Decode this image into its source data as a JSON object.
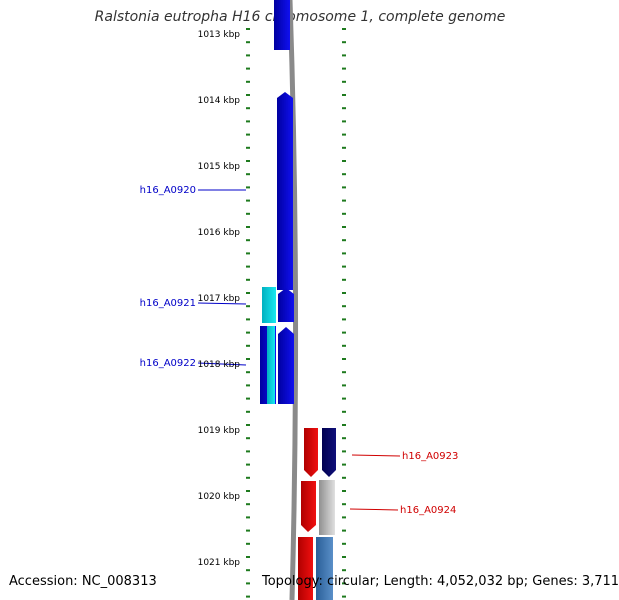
{
  "title": "Ralstonia eutropha H16 chromosome 1, complete genome",
  "footer": {
    "accession": "Accession: NC_008313",
    "summary": "Topology: circular; Length: 4,052,032 bp; Genes: 3,711"
  },
  "colors": {
    "ruler_tick": "#1e7a1e",
    "backbone": "#8a8a8a",
    "blue": "#1010f0",
    "cyan": "#18e8f0",
    "red": "#f01010",
    "navy": "#10107a",
    "grey": "#c4c4c4",
    "steel": "#5a8fc8",
    "label_blue": "#0000c8",
    "label_red": "#d00000"
  },
  "ruler_labels": [
    "1013 kbp",
    "1014 kbp",
    "1015 kbp",
    "1016 kbp",
    "1017 kbp",
    "1018 kbp",
    "1019 kbp",
    "1020 kbp",
    "1021 kbp"
  ],
  "gene_labels": [
    {
      "text": "h16_A0920",
      "color": "label_blue"
    },
    {
      "text": "h16_A0921",
      "color": "label_blue"
    },
    {
      "text": "h16_A0922",
      "color": "label_blue"
    },
    {
      "text": "h16_A0923",
      "color": "label_red"
    },
    {
      "text": "h16_A0924",
      "color": "label_red"
    }
  ]
}
